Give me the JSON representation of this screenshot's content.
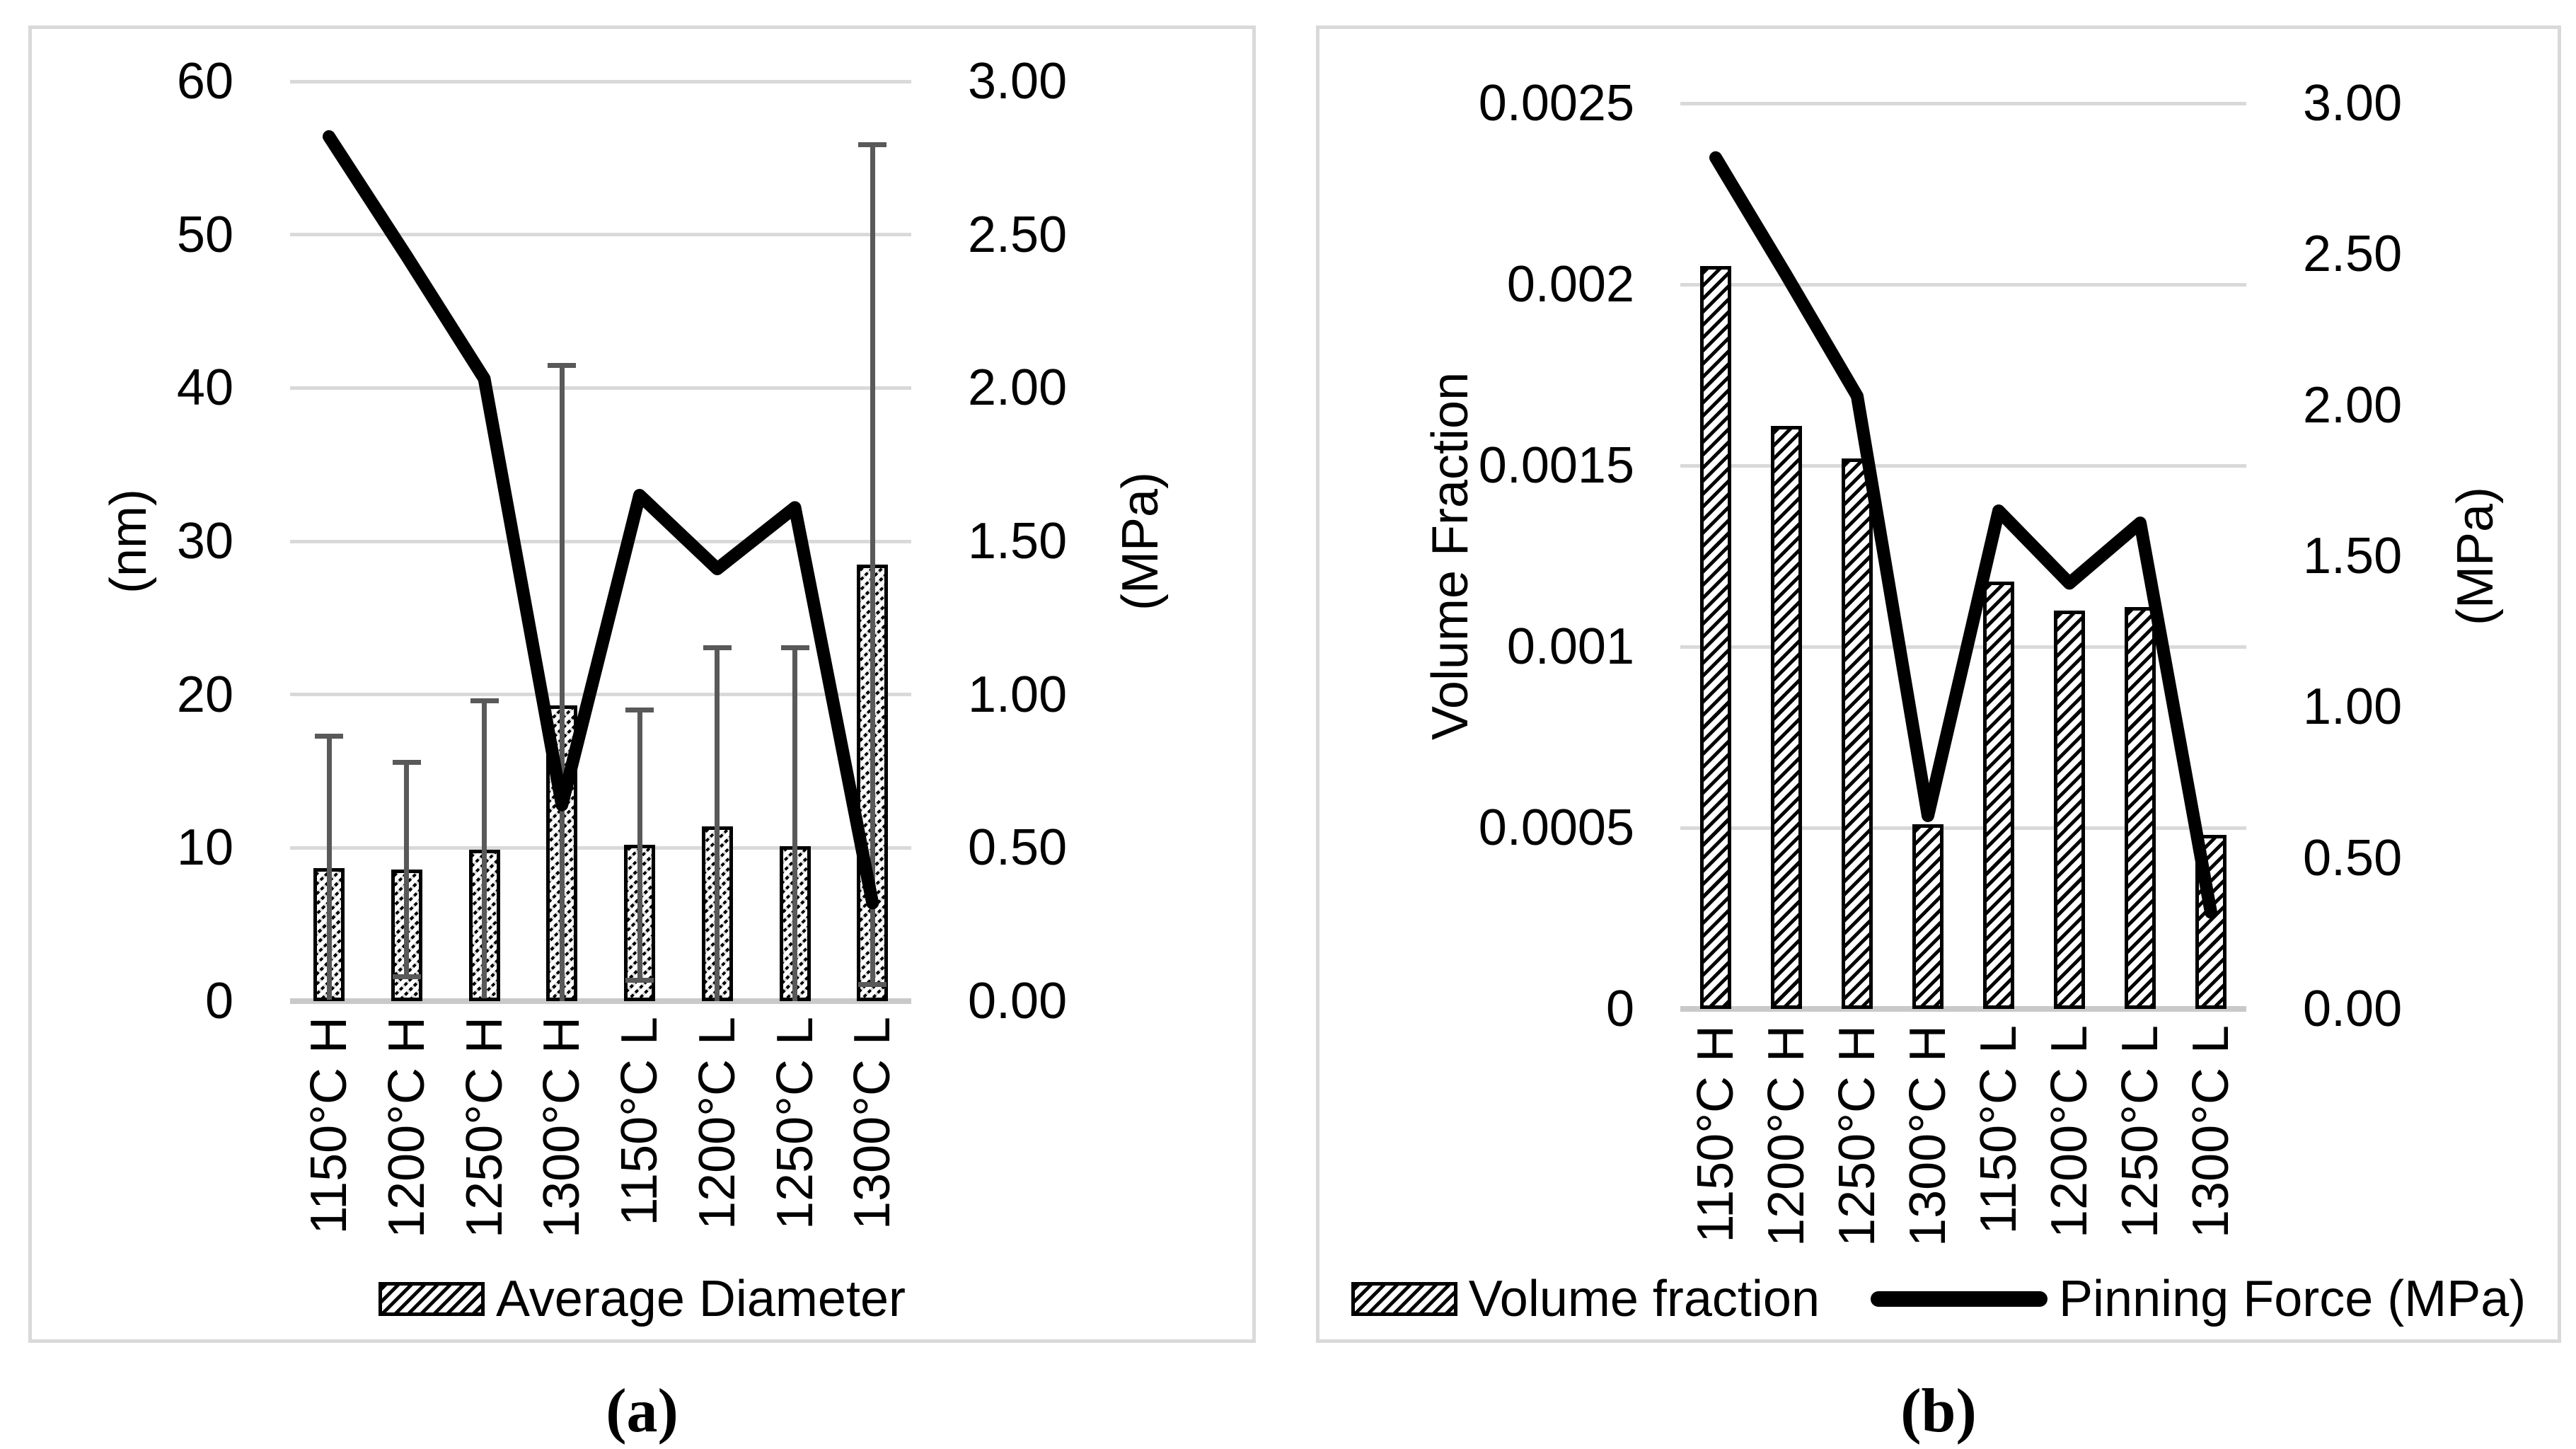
{
  "figure": {
    "description": "Two-panel combination chart: hatched bars with a thick pinning-force line on secondary MPa axis"
  },
  "colors": {
    "bar_fill": "#ffffff",
    "bar_border": "#000000",
    "line": "#000000",
    "grid": "#d9d9d9",
    "axis_line": "#c9c9c9",
    "error_bar": "#595959",
    "panel_border": "#d9d9d9",
    "text": "#000000"
  },
  "chart_data": [
    {
      "panel": "a",
      "type": "bar+line",
      "caption": "(a)",
      "categories": [
        "1150°C H",
        "1200°C H",
        "1250°C H",
        "1300°C H",
        "1150°C L",
        "1200°C L",
        "1250°C L",
        "1300°C L"
      ],
      "left_axis": {
        "title": "(nm)",
        "min": 0,
        "max": 60,
        "ticks": [
          "0",
          "10",
          "20",
          "30",
          "40",
          "50",
          "60"
        ]
      },
      "right_axis": {
        "title": "(MPa)",
        "min": 0,
        "max": 3,
        "ticks": [
          "0.00",
          "0.50",
          "1.00",
          "1.50",
          "2.00",
          "2.50",
          "3.00"
        ]
      },
      "bar_series": {
        "name": "Average Diameter",
        "unit": "nm",
        "axis": "left",
        "values": [
          8.7,
          8.6,
          9.9,
          19.3,
          10.2,
          11.4,
          10.1,
          28.5
        ],
        "errors": [
          8.6,
          7.0,
          9.7,
          22.2,
          8.8,
          11.7,
          13.0,
          27.4
        ]
      },
      "line_series": {
        "name": "Pinning Force (MPa)",
        "unit": "MPa",
        "axis": "right",
        "values": [
          2.82,
          2.43,
          2.03,
          0.64,
          1.65,
          1.41,
          1.61,
          0.32
        ]
      },
      "legend": [
        "Average Diameter"
      ],
      "grid": true,
      "legend_position": "bottom"
    },
    {
      "panel": "b",
      "type": "bar+line",
      "caption": "(b)",
      "categories": [
        "1150°C H",
        "1200°C H",
        "1250°C H",
        "1300°C H",
        "1150°C L",
        "1200°C L",
        "1250°C L",
        "1300°C L"
      ],
      "left_axis": {
        "title": "Volume Fraction",
        "min": 0,
        "max": 0.0025,
        "ticks": [
          "0",
          "0.0005",
          "0.001",
          "0.0015",
          "0.002",
          "0.0025"
        ]
      },
      "right_axis": {
        "title": "(MPa)",
        "min": 0,
        "max": 3,
        "ticks": [
          "0.00",
          "0.50",
          "1.00",
          "1.50",
          "2.00",
          "2.50",
          "3.00"
        ]
      },
      "bar_series": {
        "name": "Volume fraction",
        "unit": "fraction",
        "axis": "left",
        "values": [
          0.00205,
          0.00161,
          0.00152,
          0.00051,
          0.00118,
          0.0011,
          0.00111,
          0.00048
        ]
      },
      "line_series": {
        "name": "Pinning Force (MPa)",
        "unit": "MPa",
        "axis": "right",
        "values": [
          2.82,
          2.43,
          2.03,
          0.64,
          1.65,
          1.41,
          1.61,
          0.32
        ]
      },
      "legend": [
        "Volume fraction",
        "Pinning Force (MPa)"
      ],
      "grid": true,
      "legend_position": "bottom"
    }
  ]
}
